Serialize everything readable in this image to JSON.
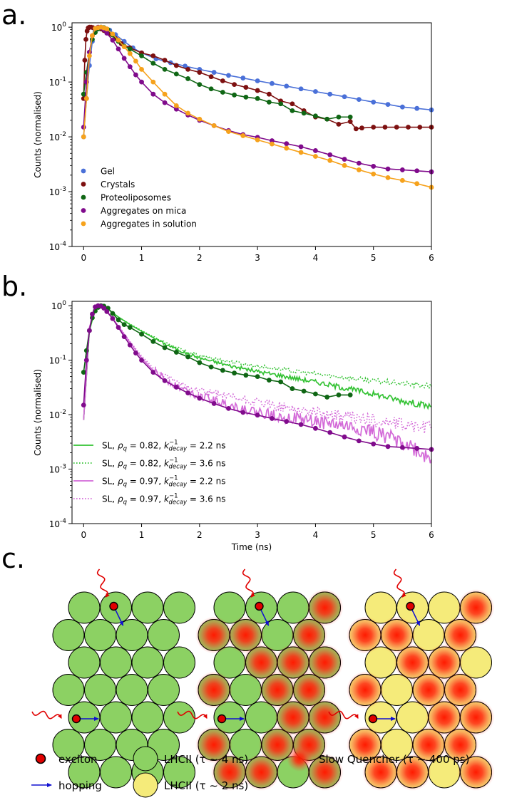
{
  "panel_labels": {
    "a": "a.",
    "b": "b.",
    "c": "c."
  },
  "chart_data": [
    {
      "id": "a",
      "type": "scatter",
      "xlabel": "",
      "ylabel": "Counts (normalised)",
      "xlim": [
        -0.2,
        6
      ],
      "ylim_log10": [
        -4,
        0.08
      ],
      "xticks": [
        0,
        1,
        2,
        3,
        4,
        5,
        6
      ],
      "xtick_labels": [
        "0",
        "1",
        "2",
        "3",
        "4",
        "5",
        "6"
      ],
      "yticks_log10": [
        0,
        -1,
        -2,
        -3,
        -4
      ],
      "ytick_labels": [
        "10^0",
        "10^-1",
        "10^-2",
        "10^-3",
        "10^-4"
      ],
      "legend_position": "lower-left",
      "series": [
        {
          "name": "Gel",
          "color": "#4a70d8",
          "x": [
            0.0,
            0.05,
            0.1,
            0.15,
            0.2,
            0.25,
            0.3,
            0.35,
            0.45,
            0.55,
            0.7,
            0.85,
            1.0,
            1.25,
            1.5,
            1.75,
            2.0,
            2.25,
            2.5,
            2.75,
            3.0,
            3.25,
            3.5,
            3.75,
            4.0,
            4.25,
            4.5,
            4.75,
            5.0,
            5.25,
            5.5,
            5.75,
            6.0
          ],
          "y": [
            0.01,
            0.05,
            0.2,
            0.55,
            0.85,
            0.97,
            1.0,
            0.98,
            0.88,
            0.73,
            0.55,
            0.42,
            0.34,
            0.265,
            0.225,
            0.195,
            0.17,
            0.15,
            0.132,
            0.118,
            0.105,
            0.094,
            0.084,
            0.075,
            0.067,
            0.06,
            0.054,
            0.048,
            0.043,
            0.039,
            0.035,
            0.033,
            0.031
          ]
        },
        {
          "name": "Crystals",
          "color": "#7d1010",
          "x": [
            0.0,
            0.02,
            0.04,
            0.06,
            0.08,
            0.1,
            0.13,
            0.16,
            0.2,
            0.25,
            0.3,
            0.35,
            0.45,
            0.55,
            0.65,
            0.8,
            1.0,
            1.2,
            1.4,
            1.6,
            1.8,
            2.0,
            2.2,
            2.4,
            2.6,
            2.8,
            3.0,
            3.2,
            3.4,
            3.6,
            3.8,
            4.0,
            4.2,
            4.4,
            4.6,
            4.7,
            4.8,
            5.0,
            5.2,
            5.4,
            5.6,
            5.8,
            6.0
          ],
          "y": [
            0.05,
            0.25,
            0.6,
            0.85,
            0.97,
            1.0,
            1.0,
            0.98,
            0.95,
            0.97,
            0.93,
            0.87,
            0.75,
            0.62,
            0.5,
            0.42,
            0.34,
            0.3,
            0.25,
            0.2,
            0.17,
            0.15,
            0.125,
            0.105,
            0.09,
            0.08,
            0.07,
            0.06,
            0.045,
            0.04,
            0.03,
            0.023,
            0.021,
            0.017,
            0.019,
            0.014,
            0.0145,
            0.015,
            0.015,
            0.015,
            0.015,
            0.015,
            0.015
          ]
        },
        {
          "name": "Proteoliposomes",
          "color": "#0f6614",
          "x": [
            0.0,
            0.05,
            0.1,
            0.15,
            0.2,
            0.25,
            0.3,
            0.35,
            0.42,
            0.5,
            0.6,
            0.7,
            0.8,
            1.0,
            1.2,
            1.4,
            1.6,
            1.8,
            2.0,
            2.2,
            2.4,
            2.6,
            2.8,
            3.0,
            3.2,
            3.4,
            3.6,
            3.8,
            4.0,
            4.2,
            4.4,
            4.6
          ],
          "y": [
            0.06,
            0.15,
            0.35,
            0.6,
            0.8,
            0.93,
            1.0,
            0.98,
            0.9,
            0.72,
            0.55,
            0.45,
            0.4,
            0.3,
            0.22,
            0.17,
            0.14,
            0.115,
            0.09,
            0.075,
            0.065,
            0.058,
            0.053,
            0.05,
            0.043,
            0.04,
            0.03,
            0.027,
            0.024,
            0.021,
            0.023,
            0.023
          ]
        },
        {
          "name": "Aggregates on mica",
          "color": "#800b8c",
          "x": [
            0.0,
            0.05,
            0.1,
            0.15,
            0.2,
            0.25,
            0.3,
            0.35,
            0.4,
            0.5,
            0.6,
            0.7,
            0.8,
            0.9,
            1.0,
            1.2,
            1.4,
            1.6,
            1.8,
            2.0,
            2.25,
            2.5,
            2.75,
            3.0,
            3.25,
            3.5,
            3.75,
            4.0,
            4.25,
            4.5,
            4.75,
            5.0,
            5.25,
            5.5,
            5.75,
            6.0
          ],
          "y": [
            0.015,
            0.1,
            0.35,
            0.7,
            0.95,
            1.0,
            0.98,
            0.9,
            0.78,
            0.58,
            0.4,
            0.27,
            0.19,
            0.135,
            0.1,
            0.06,
            0.042,
            0.032,
            0.025,
            0.02,
            0.016,
            0.013,
            0.011,
            0.0098,
            0.0085,
            0.0075,
            0.0066,
            0.0056,
            0.0047,
            0.0039,
            0.0033,
            0.0029,
            0.0026,
            0.0025,
            0.0024,
            0.0023
          ]
        },
        {
          "name": "Aggregates in solution",
          "color": "#f6a21c",
          "x": [
            0.0,
            0.05,
            0.1,
            0.15,
            0.2,
            0.25,
            0.3,
            0.35,
            0.4,
            0.5,
            0.6,
            0.7,
            0.8,
            0.9,
            1.0,
            1.2,
            1.4,
            1.6,
            1.8,
            2.0,
            2.25,
            2.5,
            2.75,
            3.0,
            3.25,
            3.5,
            3.75,
            4.0,
            4.25,
            4.5,
            4.75,
            5.0,
            5.25,
            5.5,
            5.75,
            6.0
          ],
          "y": [
            0.01,
            0.05,
            0.3,
            0.7,
            0.95,
            0.98,
            1.0,
            0.97,
            0.93,
            0.75,
            0.58,
            0.44,
            0.33,
            0.24,
            0.17,
            0.1,
            0.06,
            0.037,
            0.027,
            0.021,
            0.016,
            0.0125,
            0.0105,
            0.0088,
            0.0074,
            0.0062,
            0.0052,
            0.0044,
            0.0037,
            0.003,
            0.0025,
            0.0021,
            0.0018,
            0.0016,
            0.0014,
            0.0012
          ]
        }
      ]
    },
    {
      "id": "b",
      "type": "line",
      "xlabel": "Time (ns)",
      "ylabel": "Counts (normalised)",
      "xlim": [
        -0.2,
        6
      ],
      "ylim_log10": [
        -4,
        0.08
      ],
      "xticks": [
        0,
        1,
        2,
        3,
        4,
        5,
        6
      ],
      "xtick_labels": [
        "0",
        "1",
        "2",
        "3",
        "4",
        "5",
        "6"
      ],
      "yticks_log10": [
        0,
        -1,
        -2,
        -3,
        -4
      ],
      "ytick_labels": [
        "10^0",
        "10^-1",
        "10^-2",
        "10^-3",
        "10^-4"
      ],
      "legend_position": "lower-left",
      "experimental": [
        {
          "name": "Proteoliposomes",
          "color": "#0f6614",
          "x": [
            0.0,
            0.05,
            0.1,
            0.15,
            0.2,
            0.25,
            0.3,
            0.35,
            0.42,
            0.5,
            0.6,
            0.7,
            0.8,
            1.0,
            1.2,
            1.4,
            1.6,
            1.8,
            2.0,
            2.2,
            2.4,
            2.6,
            2.8,
            3.0,
            3.2,
            3.4,
            3.6,
            3.8,
            4.0,
            4.2,
            4.4,
            4.6
          ],
          "y": [
            0.06,
            0.15,
            0.35,
            0.6,
            0.8,
            0.93,
            1.0,
            0.98,
            0.9,
            0.72,
            0.55,
            0.45,
            0.4,
            0.3,
            0.22,
            0.17,
            0.14,
            0.115,
            0.09,
            0.075,
            0.065,
            0.058,
            0.053,
            0.05,
            0.043,
            0.04,
            0.03,
            0.027,
            0.024,
            0.021,
            0.023,
            0.023
          ]
        },
        {
          "name": "Aggregates on mica",
          "color": "#800b8c",
          "x": [
            0.0,
            0.05,
            0.1,
            0.15,
            0.2,
            0.25,
            0.3,
            0.35,
            0.4,
            0.5,
            0.6,
            0.7,
            0.8,
            0.9,
            1.0,
            1.2,
            1.4,
            1.6,
            1.8,
            2.0,
            2.25,
            2.5,
            2.75,
            3.0,
            3.25,
            3.5,
            3.75,
            4.0,
            4.25,
            4.5,
            4.75,
            5.0,
            5.25,
            5.5,
            5.75,
            6.0
          ],
          "y": [
            0.015,
            0.1,
            0.35,
            0.7,
            0.95,
            1.0,
            0.98,
            0.9,
            0.78,
            0.58,
            0.4,
            0.27,
            0.19,
            0.135,
            0.1,
            0.06,
            0.042,
            0.032,
            0.025,
            0.02,
            0.016,
            0.013,
            0.011,
            0.0098,
            0.0085,
            0.0075,
            0.0066,
            0.0056,
            0.0047,
            0.0039,
            0.0033,
            0.0029,
            0.0026,
            0.0025,
            0.0024,
            0.0023
          ]
        }
      ],
      "simulated": [
        {
          "legend": {
            "prefix": "SL, ",
            "rho": "ρ",
            "rho_sub": "q",
            "rho_value": " = 0.82, ",
            "k": "k",
            "k_sup": "−1",
            "k_sub": "decay",
            "k_value": " = 2.2 ns"
          },
          "color": "#33c233",
          "dash": "solid",
          "noise": 0.045,
          "x": [
            0.0,
            0.1,
            0.2,
            0.3,
            0.4,
            0.6,
            0.8,
            1.0,
            1.2,
            1.4,
            1.6,
            1.8,
            2.0,
            2.5,
            3.0,
            3.5,
            4.0,
            4.5,
            5.0,
            5.5,
            6.0
          ],
          "y": [
            0.008,
            0.35,
            0.85,
            1.0,
            0.9,
            0.62,
            0.45,
            0.34,
            0.26,
            0.2,
            0.16,
            0.13,
            0.11,
            0.08,
            0.062,
            0.05,
            0.04,
            0.031,
            0.024,
            0.018,
            0.014
          ]
        },
        {
          "legend": {
            "prefix": "SL, ",
            "rho": "ρ",
            "rho_sub": "q",
            "rho_value": " = 0.82, ",
            "k": "k",
            "k_sup": "−1",
            "k_sub": "decay",
            "k_value": " = 3.6 ns"
          },
          "color": "#33c233",
          "dash": "dotted",
          "noise": 0.04,
          "x": [
            0.0,
            0.1,
            0.2,
            0.3,
            0.4,
            0.6,
            0.8,
            1.0,
            1.2,
            1.4,
            1.6,
            1.8,
            2.0,
            2.5,
            3.0,
            3.5,
            4.0,
            4.5,
            5.0,
            5.5,
            6.0
          ],
          "y": [
            0.008,
            0.35,
            0.85,
            1.0,
            0.9,
            0.62,
            0.46,
            0.35,
            0.27,
            0.21,
            0.17,
            0.14,
            0.12,
            0.095,
            0.078,
            0.066,
            0.056,
            0.048,
            0.042,
            0.037,
            0.033
          ]
        },
        {
          "legend": {
            "prefix": "SL, ",
            "rho": "ρ",
            "rho_sub": "q",
            "rho_value": " = 0.97, ",
            "k": "k",
            "k_sup": "−1",
            "k_sub": "decay",
            "k_value": " = 2.2 ns"
          },
          "color": "#d36ad8",
          "dash": "solid",
          "noise": 0.12,
          "x": [
            0.0,
            0.1,
            0.2,
            0.3,
            0.4,
            0.5,
            0.6,
            0.8,
            1.0,
            1.2,
            1.4,
            1.6,
            1.8,
            2.0,
            2.5,
            3.0,
            3.5,
            4.0,
            4.5,
            5.0,
            5.5,
            6.0
          ],
          "y": [
            0.008,
            0.4,
            0.9,
            1.0,
            0.8,
            0.58,
            0.42,
            0.21,
            0.11,
            0.065,
            0.045,
            0.034,
            0.027,
            0.022,
            0.015,
            0.011,
            0.009,
            0.0075,
            0.0062,
            0.0048,
            0.0032,
            0.0015
          ]
        },
        {
          "legend": {
            "prefix": "SL, ",
            "rho": "ρ",
            "rho_sub": "q",
            "rho_value": " = 0.97, ",
            "k": "k",
            "k_sup": "−1",
            "k_sub": "decay",
            "k_value": " = 3.6 ns"
          },
          "color": "#d36ad8",
          "dash": "dotted",
          "noise": 0.1,
          "x": [
            0.0,
            0.1,
            0.2,
            0.3,
            0.4,
            0.5,
            0.6,
            0.8,
            1.0,
            1.2,
            1.4,
            1.6,
            1.8,
            2.0,
            2.5,
            3.0,
            3.5,
            4.0,
            4.5,
            5.0,
            5.5,
            6.0
          ],
          "y": [
            0.008,
            0.4,
            0.9,
            1.0,
            0.8,
            0.58,
            0.43,
            0.22,
            0.12,
            0.072,
            0.051,
            0.04,
            0.033,
            0.028,
            0.021,
            0.0165,
            0.0135,
            0.011,
            0.0092,
            0.0078,
            0.0066,
            0.0056
          ]
        }
      ]
    }
  ],
  "diagram": {
    "panels": [
      {
        "name": "all-lhcii-4ns",
        "rows": [
          [
            "g",
            "g",
            "g",
            "g"
          ],
          [
            "g",
            "g",
            "g",
            "g"
          ],
          [
            "g",
            "g",
            "g",
            "g"
          ],
          [
            "g",
            "g",
            "g",
            "g"
          ],
          [
            "g",
            "g",
            "g",
            "g"
          ],
          [
            "g",
            "g",
            "g",
            "g"
          ],
          [
            "g",
            "g",
            "g",
            "g"
          ]
        ]
      },
      {
        "name": "lhcii-4ns-with-quenchers",
        "rows": [
          [
            "g",
            "g",
            "g",
            "q"
          ],
          [
            "q",
            "q",
            "g",
            "q"
          ],
          [
            "g",
            "q",
            "q",
            "q"
          ],
          [
            "q",
            "g",
            "q",
            "q"
          ],
          [
            "g",
            "g",
            "q",
            "q"
          ],
          [
            "q",
            "g",
            "q",
            "q"
          ],
          [
            "q",
            "q",
            "g",
            "q"
          ]
        ]
      },
      {
        "name": "lhcii-2ns-with-quenchers",
        "rows": [
          [
            "y",
            "y",
            "y",
            "q"
          ],
          [
            "q",
            "q",
            "y",
            "q"
          ],
          [
            "y",
            "q",
            "q",
            "y"
          ],
          [
            "q",
            "y",
            "q",
            "q"
          ],
          [
            "y",
            "y",
            "q",
            "q"
          ],
          [
            "q",
            "y",
            "q",
            "q"
          ],
          [
            "q",
            "q",
            "y",
            "q"
          ]
        ]
      }
    ],
    "colors": {
      "green": "#8cd163",
      "yellow": "#f5eb7a",
      "quencher": "#ff2a12",
      "exciton": "#e00000",
      "hop": "#1010d0",
      "photon": "#e00000"
    },
    "legend": {
      "exciton": "exciton",
      "hopping": "hopping",
      "lhcii_4ns": "LHCII (τ ~ 4 ns)",
      "lhcii_2ns": "LHCII (τ ~ 2 ns)",
      "slow_quencher": "Slow Quencher (τ ~ 400 ps)"
    }
  }
}
